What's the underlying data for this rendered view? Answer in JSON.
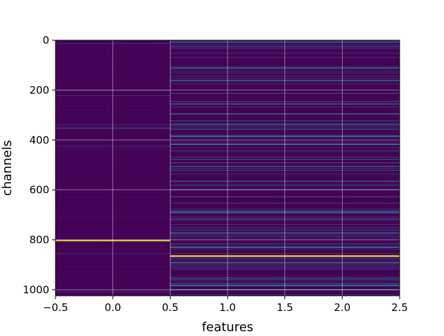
{
  "chart_data": {
    "type": "heatmap",
    "colormap": "viridis",
    "xlabel": "features",
    "ylabel": "channels",
    "x_ticks": [
      -0.5,
      0.0,
      0.5,
      1.0,
      1.5,
      2.0,
      2.5
    ],
    "x_tick_labels": [
      "−0.5",
      "0.0",
      "0.5",
      "1.0",
      "1.5",
      "2.0",
      "2.5"
    ],
    "y_ticks": [
      0,
      200,
      400,
      600,
      800,
      1000
    ],
    "y_tick_labels": [
      "0",
      "200",
      "400",
      "600",
      "800",
      "1000"
    ],
    "xlim": [
      -0.5,
      2.5
    ],
    "ylim": [
      1024,
      0
    ],
    "n_channels": 1024,
    "n_features": 3,
    "grid": true,
    "columns": [
      {
        "x_range": [
          -0.5,
          0.5
        ],
        "level": "low",
        "note": "first feature column, values mostly near minimum"
      },
      {
        "x_range": [
          0.5,
          2.5
        ],
        "level": "mixed",
        "note": "remaining features, scattered higher values"
      }
    ],
    "bright_rows": [
      {
        "channel": 862,
        "x_range": [
          0.5,
          2.5
        ],
        "color": "#fde725"
      },
      {
        "channel": 800,
        "x_range": [
          -0.5,
          0.5
        ],
        "color": "#d5e21a"
      },
      {
        "channel": 414,
        "x_range": [
          0.5,
          2.5
        ],
        "color": "#2a788e"
      },
      {
        "channel": 686,
        "x_range": [
          0.5,
          2.5
        ],
        "color": "#2a788e"
      },
      {
        "channel": 980,
        "x_range": [
          0.5,
          2.5
        ],
        "color": "#2a788e"
      }
    ],
    "colors": {
      "background": "#440154",
      "dark_stripe": "#46085c",
      "mid_stripe": "#3b528b",
      "teal_stripe": "#21918c",
      "grid": "#ffffff"
    }
  }
}
